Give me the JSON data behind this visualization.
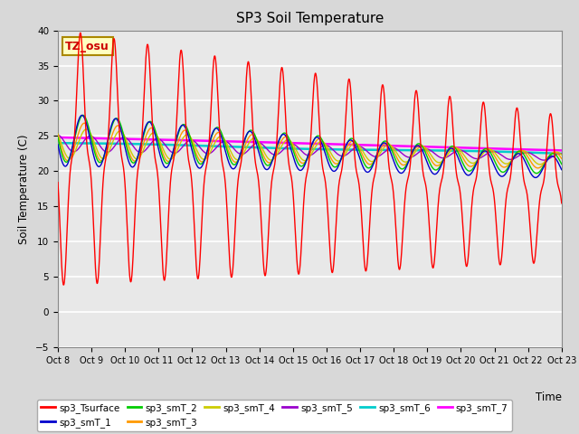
{
  "title": "SP3 Soil Temperature",
  "ylabel": "Soil Temperature (C)",
  "xlabel": "Time",
  "annotation": "TZ_osu",
  "xlim": [
    0,
    15
  ],
  "ylim": [
    -5,
    40
  ],
  "yticks": [
    -5,
    0,
    5,
    10,
    15,
    20,
    25,
    30,
    35,
    40
  ],
  "xtick_labels": [
    "Oct 8",
    "Oct 9",
    "Oct 10",
    "Oct 11",
    "Oct 12",
    "Oct 13",
    "Oct 14",
    "Oct 15",
    "Oct 16",
    "Oct 17",
    "Oct 18",
    "Oct 19",
    "Oct 20",
    "Oct 21",
    "Oct 22",
    "Oct 23"
  ],
  "series_colors": {
    "sp3_Tsurface": "#ff0000",
    "sp3_smT_1": "#0000cc",
    "sp3_smT_2": "#00cc00",
    "sp3_smT_3": "#ff9900",
    "sp3_smT_4": "#cccc00",
    "sp3_smT_5": "#9900cc",
    "sp3_smT_6": "#00cccc",
    "sp3_smT_7": "#ff00ff"
  },
  "plot_bg_color": "#e8e8e8",
  "fig_bg_color": "#d8d8d8",
  "num_days": 15,
  "n_per_day": 144
}
